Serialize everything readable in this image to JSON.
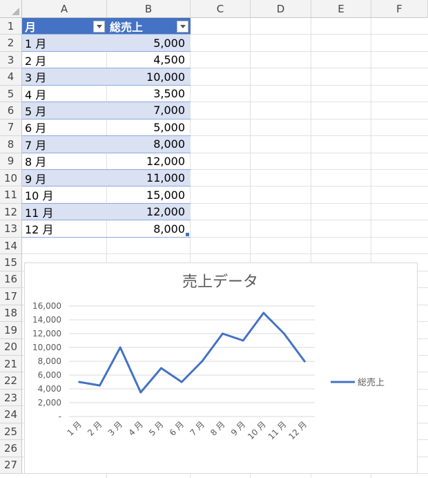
{
  "sheet": {
    "columns": [
      "A",
      "B",
      "C",
      "D",
      "E",
      "F"
    ],
    "rows": [
      "1",
      "2",
      "3",
      "4",
      "5",
      "6",
      "7",
      "8",
      "9",
      "10",
      "11",
      "12",
      "13",
      "14",
      "15",
      "16",
      "17",
      "18",
      "19",
      "20",
      "21",
      "22",
      "23",
      "24",
      "25",
      "26",
      "27"
    ]
  },
  "table": {
    "headers": [
      "月",
      "総売上"
    ],
    "months": [
      "1 月",
      "2 月",
      "3 月",
      "4 月",
      "5 月",
      "6 月",
      "7 月",
      "8 月",
      "9 月",
      "10 月",
      "11 月",
      "12 月"
    ],
    "sales": [
      "5,000",
      "4,500",
      "10,000",
      "3,500",
      "7,000",
      "5,000",
      "8,000",
      "12,000",
      "11,000",
      "15,000",
      "12,000",
      "8,000"
    ]
  },
  "colors": {
    "header": "#4472c4",
    "band": "#d9e1f2",
    "line": "#4472c4"
  },
  "chart_data": {
    "type": "line",
    "title": "売上データ",
    "categories": [
      "1 月",
      "2 月",
      "3 月",
      "4 月",
      "5 月",
      "6 月",
      "7 月",
      "8 月",
      "9 月",
      "10 月",
      "11 月",
      "12 月"
    ],
    "series": [
      {
        "name": "総売上",
        "values": [
          5000,
          4500,
          10000,
          3500,
          7000,
          5000,
          8000,
          12000,
          11000,
          15000,
          12000,
          8000
        ]
      }
    ],
    "yticks": [
      "-",
      "2,000",
      "4,000",
      "6,000",
      "8,000",
      "10,000",
      "12,000",
      "14,000",
      "16,000"
    ],
    "ylim": [
      0,
      16000
    ],
    "grid": true,
    "legend": "right"
  }
}
